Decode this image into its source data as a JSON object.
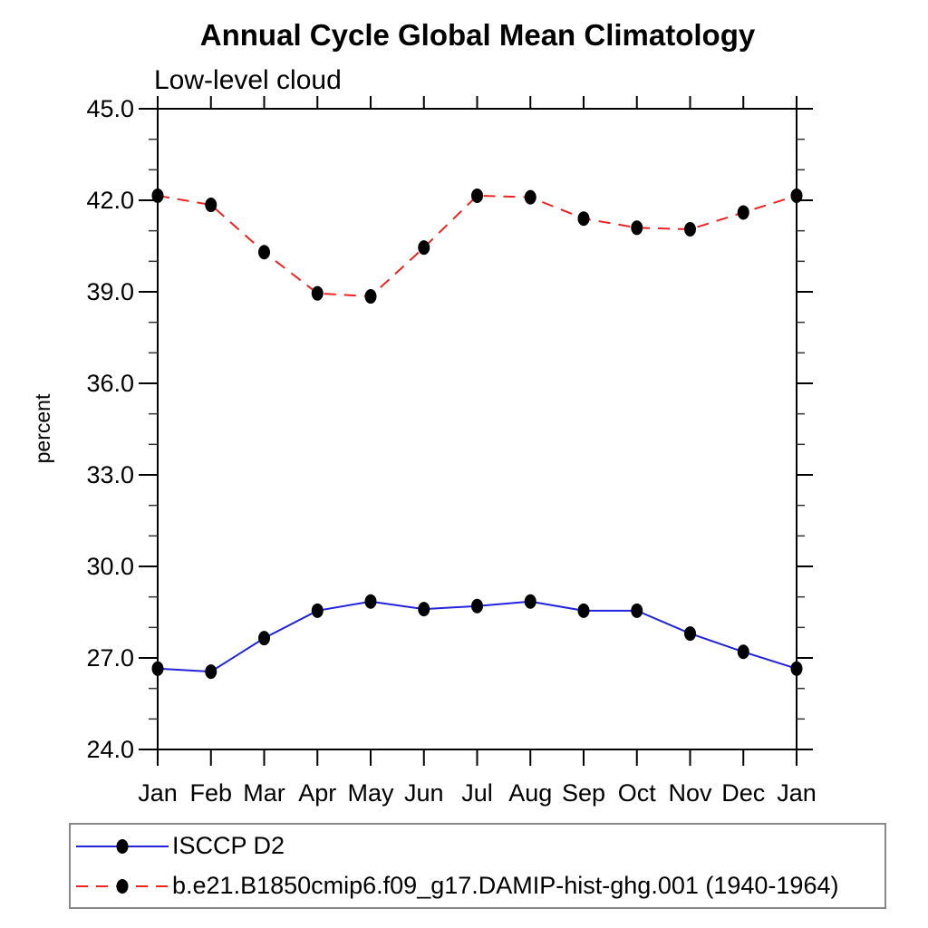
{
  "chart_data": {
    "type": "line",
    "title": "Annual Cycle Global Mean Climatology",
    "subtitle": "Low-level cloud",
    "ylabel": "percent",
    "categories": [
      "Jan",
      "Feb",
      "Mar",
      "Apr",
      "May",
      "Jun",
      "Jul",
      "Aug",
      "Sep",
      "Oct",
      "Nov",
      "Dec",
      "Jan"
    ],
    "ylim": [
      24.0,
      45.0
    ],
    "ytick_major_interval": 3.0,
    "ytick_minor_interval": 1.0,
    "ytick_labels": [
      "24.0",
      "27.0",
      "30.0",
      "33.0",
      "36.0",
      "39.0",
      "42.0",
      "45.0"
    ],
    "grid": false,
    "legend_position": "bottom",
    "series": [
      {
        "name": "ISCCP D2",
        "color": "#2222dd",
        "style": "solid",
        "marker": "filled-circle",
        "marker_color": "#000000",
        "values": [
          26.65,
          26.55,
          27.65,
          28.55,
          28.85,
          28.6,
          28.7,
          28.85,
          28.55,
          28.55,
          27.8,
          27.2,
          26.65
        ]
      },
      {
        "name": "b.e21.B1850cmip6.f09_g17.DAMIP-hist-ghg.001 (1940-1964)",
        "color": "#ee2222",
        "style": "dashed",
        "marker": "filled-circle",
        "marker_color": "#000000",
        "values": [
          42.15,
          41.85,
          40.3,
          38.95,
          38.85,
          40.45,
          42.15,
          42.1,
          41.4,
          41.1,
          41.05,
          41.6,
          42.15
        ]
      }
    ]
  }
}
